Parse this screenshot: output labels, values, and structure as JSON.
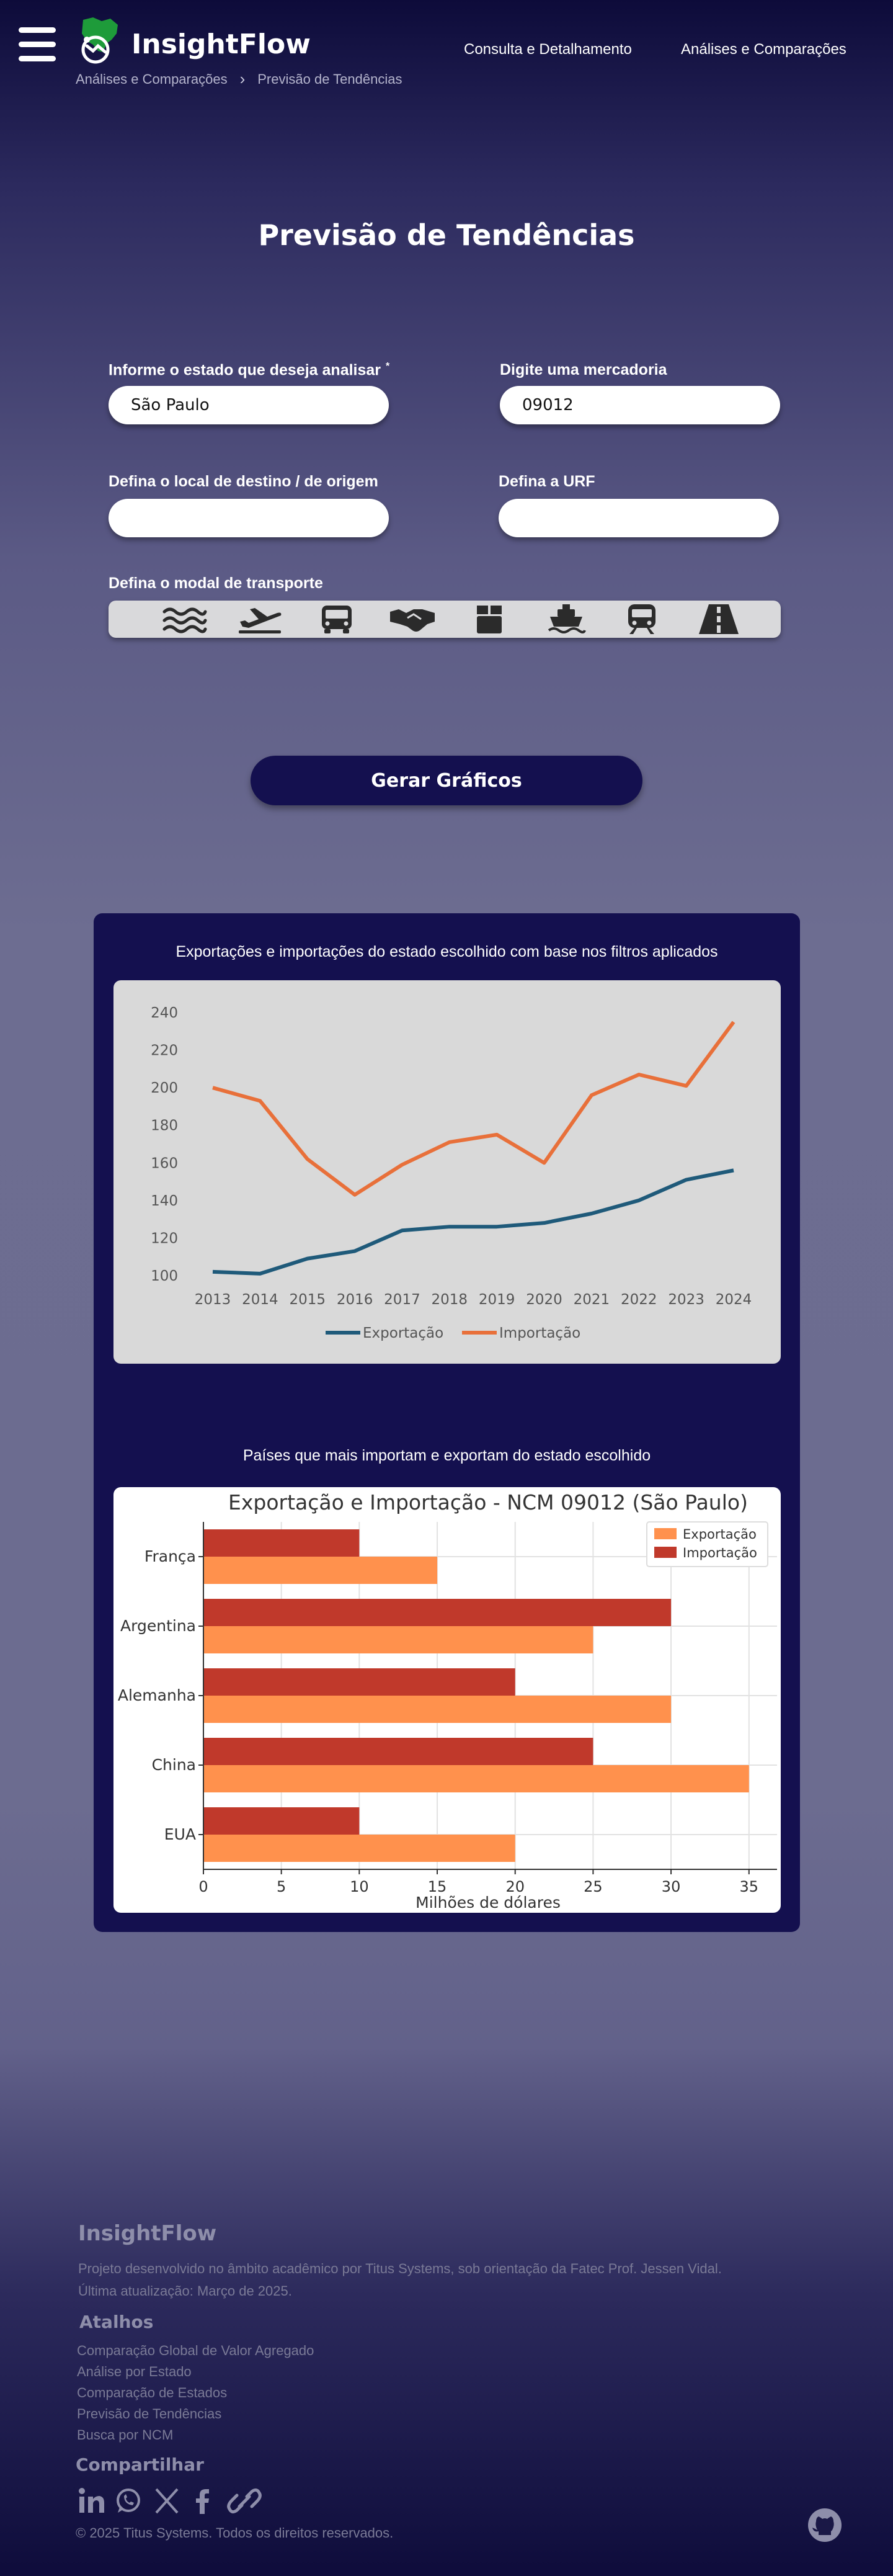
{
  "header": {
    "brand": "InsightFlow",
    "nav": [
      "Consulta e Detalhamento",
      "Análises e Comparações"
    ],
    "breadcrumb": [
      "Análises e Comparações",
      "Previsão de Tendências"
    ]
  },
  "page_title": "Previsão de Tendências",
  "form": {
    "state_label": "Informe o estado que deseja analisar",
    "state_required_mark": "*",
    "state_value": "São Paulo",
    "product_label": "Digite uma mercadoria",
    "product_value": "09012",
    "destination_label": "Defina o local de destino / de origem",
    "destination_value": "",
    "urf_label": "Defina a URF",
    "urf_value": "",
    "modal_label": "Defina o modal de transporte",
    "modal_icons": [
      "waves-icon",
      "airplane-icon",
      "truck-icon",
      "handshake-icon",
      "package-icon",
      "ship-icon",
      "train-icon",
      "road-icon"
    ],
    "generate_button": "Gerar Gráficos"
  },
  "charts": {
    "chart1_caption": "Exportações e importações do estado escolhido com base nos filtros aplicados",
    "chart2_caption": "Países que mais importam e exportam do estado escolhido"
  },
  "chart_data": [
    {
      "type": "line",
      "title": "",
      "x": [
        2013,
        2014,
        2015,
        2016,
        2017,
        2018,
        2019,
        2020,
        2021,
        2022,
        2023,
        2024
      ],
      "series": [
        {
          "name": "Exportação",
          "color": "#1f5a7a",
          "values": [
            102,
            101,
            109,
            113,
            124,
            126,
            126,
            128,
            133,
            140,
            151,
            156
          ]
        },
        {
          "name": "Importação",
          "color": "#e8703a",
          "values": [
            200,
            193,
            162,
            143,
            159,
            171,
            175,
            160,
            196,
            207,
            201,
            235
          ]
        }
      ],
      "yticks": [
        100,
        120,
        140,
        160,
        180,
        200,
        220,
        240
      ],
      "ylim": [
        96,
        244
      ],
      "legend": "bottom",
      "grid": false
    },
    {
      "type": "bar",
      "orientation": "horizontal",
      "title": "Exportação e Importação - NCM 09012 (São Paulo)",
      "xlabel": "Milhões de dólares",
      "categories": [
        "França",
        "Argentina",
        "Alemanha",
        "China",
        "EUA"
      ],
      "series": [
        {
          "name": "Exportação",
          "color": "#ff914d",
          "values": [
            15,
            25,
            30,
            35,
            20
          ]
        },
        {
          "name": "Importação",
          "color": "#c0392b",
          "values": [
            10,
            30,
            20,
            25,
            10
          ]
        }
      ],
      "xticks": [
        0,
        5,
        10,
        15,
        20,
        25,
        30,
        35
      ],
      "xlim": [
        0,
        36.8
      ],
      "legend": "top-right",
      "grid": true
    }
  ],
  "footer": {
    "brand": "InsightFlow",
    "description": "Projeto desenvolvido no âmbito acadêmico por Titus Systems, sob orientação da Fatec Prof. Jessen Vidal.",
    "updated": "Última atualização: Março de 2025.",
    "shortcuts_title": "Atalhos",
    "shortcuts": [
      "Comparação Global de Valor Agregado",
      "Análise por Estado",
      "Comparação de Estados",
      "Previsão de Tendências",
      "Busca por NCM"
    ],
    "share_title": "Compartilhar",
    "share_icons": [
      "linkedin-icon",
      "whatsapp-icon",
      "x-icon",
      "facebook-icon",
      "link-icon"
    ],
    "copyright": "© 2025 Titus Systems. Todos os direitos reservados."
  }
}
